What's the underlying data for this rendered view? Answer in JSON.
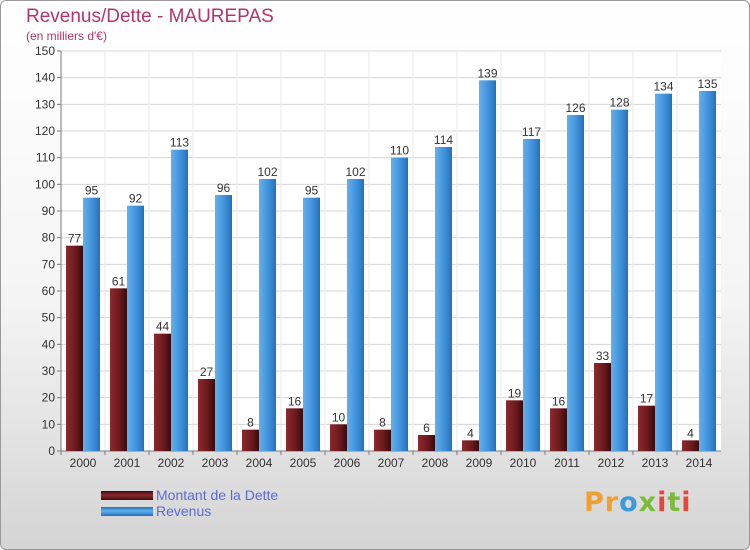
{
  "header": {
    "title": "Revenus/Dette - MAUREPAS",
    "subtitle": "(en milliers d'€)"
  },
  "legend": {
    "items": [
      {
        "label": "Montant de la Dette",
        "color": "#6b1a1e"
      },
      {
        "label": "Revenus",
        "color": "#3d8fd8"
      }
    ]
  },
  "brand": {
    "parts": [
      "Pr",
      "o",
      "x",
      "i",
      "t",
      "i"
    ],
    "colors": [
      "#f0a030",
      "#3d9ad8",
      "#7abc3a",
      "#e8463a"
    ]
  },
  "chart_data": {
    "type": "bar",
    "categories": [
      "2000",
      "2001",
      "2002",
      "2003",
      "2004",
      "2005",
      "2006",
      "2007",
      "2008",
      "2009",
      "2010",
      "2011",
      "2012",
      "2013",
      "2014"
    ],
    "series": [
      {
        "name": "Montant de la Dette",
        "color": "#7a1f24",
        "values": [
          77,
          61,
          44,
          27,
          8,
          16,
          10,
          8,
          6,
          4,
          19,
          16,
          33,
          17,
          4
        ]
      },
      {
        "name": "Revenus",
        "color": "#4a9be0",
        "values": [
          95,
          92,
          113,
          96,
          102,
          95,
          102,
          110,
          114,
          139,
          117,
          126,
          128,
          134,
          135
        ]
      }
    ],
    "ylim": [
      0,
      150
    ],
    "yticks": [
      0,
      10,
      20,
      30,
      40,
      50,
      60,
      70,
      80,
      90,
      100,
      110,
      120,
      130,
      140,
      150
    ],
    "grid": true,
    "data_labels": true,
    "legend_position": "bottom-left"
  }
}
